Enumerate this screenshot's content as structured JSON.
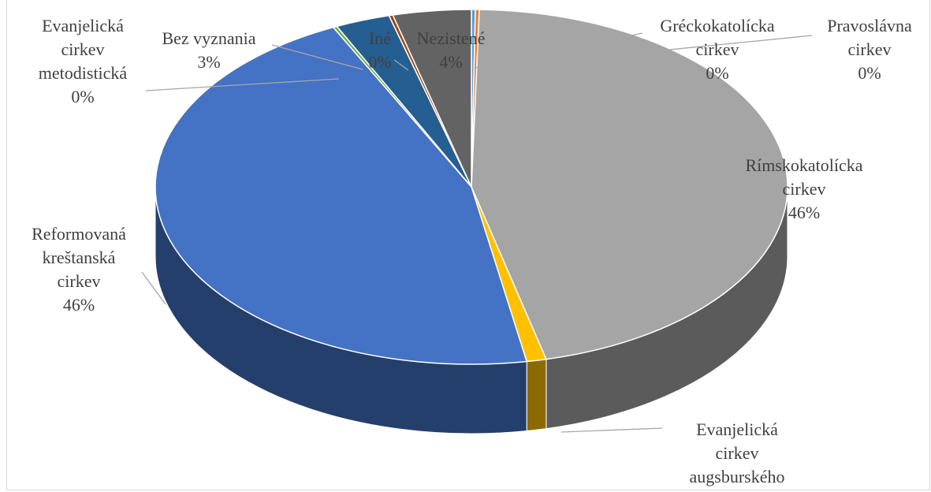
{
  "chart_data": {
    "type": "pie",
    "three_d": true,
    "categories": [
      "Gréckokatolícka cirkev",
      "Pravoslávna cirkev",
      "Rímskokatolícka cirkev",
      "Evanjelická cirkev augsburského",
      "Reformovaná kreštanská cirkev",
      "Evanjelická cirkev metodistická",
      "Bez vyznania",
      "Iné",
      "Nezistené"
    ],
    "values": [
      0.2,
      0.2,
      45.8,
      1,
      45.6,
      0.2,
      2.8,
      0.2,
      4
    ],
    "value_labels": [
      "0%",
      "0%",
      "46%",
      null,
      "46%",
      "0%",
      "3%",
      "0%",
      "4%"
    ],
    "colors": [
      "#5b9bd5",
      "#ed7d31",
      "#a5a5a5",
      "#ffc000",
      "#4472c4",
      "#70ad47",
      "#255e91",
      "#9e480e",
      "#636363"
    ]
  }
}
